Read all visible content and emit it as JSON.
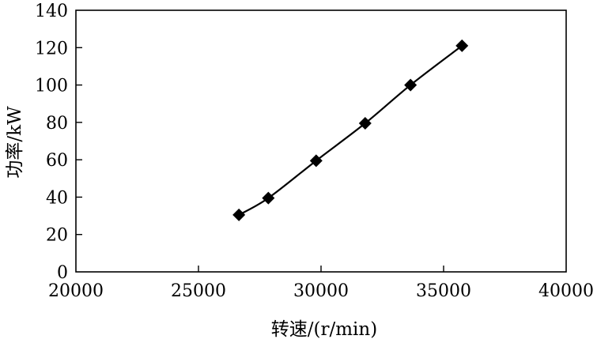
{
  "chart_data": {
    "type": "line",
    "xlabel": "转速/(r/min)",
    "ylabel": "功率/kW",
    "xlim": [
      20000,
      40000
    ],
    "ylim": [
      0,
      140
    ],
    "x_ticks": [
      "20000",
      "25000",
      "30000",
      "35000",
      "40000"
    ],
    "y_ticks": [
      "0",
      "20",
      "40",
      "60",
      "80",
      "100",
      "120",
      "140"
    ],
    "grid": false,
    "marker": "diamond",
    "series": [
      {
        "x": [
          26650,
          27850,
          29800,
          31800,
          33650,
          35750
        ],
        "y": [
          30.5,
          39.5,
          59.5,
          79.5,
          100,
          121
        ]
      }
    ]
  }
}
